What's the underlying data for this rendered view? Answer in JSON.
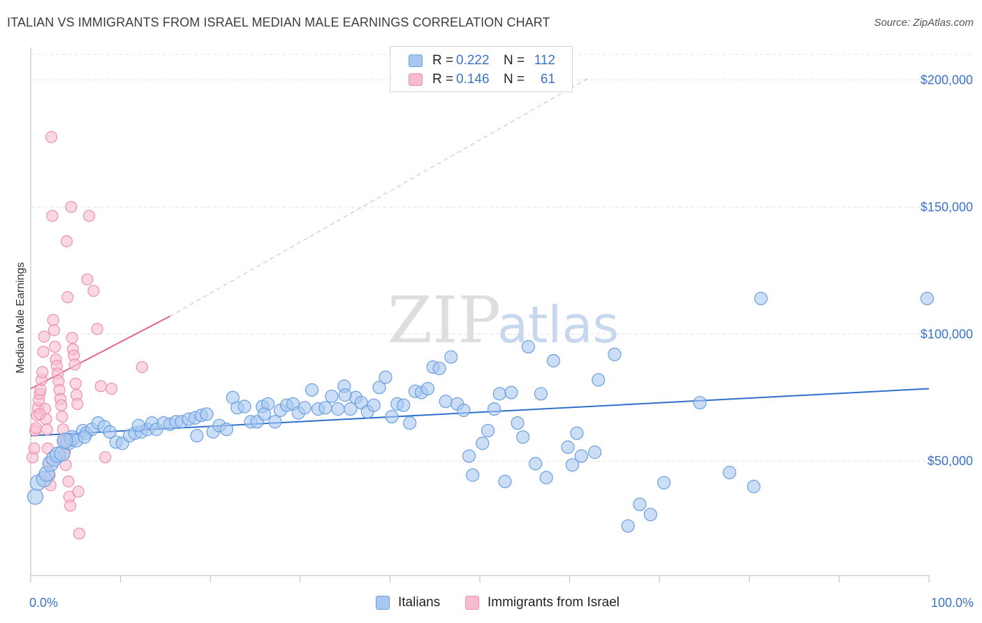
{
  "title": "ITALIAN VS IMMIGRANTS FROM ISRAEL MEDIAN MALE EARNINGS CORRELATION CHART",
  "source": "Source: ZipAtlas.com",
  "watermark": {
    "zip": "ZIP",
    "atlas": "atlas"
  },
  "legend": {
    "rows": [
      {
        "r_label": "R =",
        "r_value": "0.222",
        "n_label": "N =",
        "n_value": "112"
      },
      {
        "r_label": "R =",
        "r_value": "0.146",
        "n_label": "N =",
        "n_value": "61"
      }
    ]
  },
  "bottom_legend": [
    "Italians",
    "Immigrants from Israel"
  ],
  "colors": {
    "italians_fill": "#a9c8f0",
    "italians_stroke": "#6a9fe0",
    "italians_line": "#2f6fcc",
    "israel_fill": "#f7bcd0",
    "israel_stroke": "#ee8fb0",
    "israel_line": "#e06890",
    "tick_text": "#3a72c8",
    "grid": "#e2e2e2"
  },
  "chart_data": {
    "type": "scatter",
    "title": "ITALIAN VS IMMIGRANTS FROM ISRAEL MEDIAN MALE EARNINGS CORRELATION CHART",
    "xlabel": "",
    "ylabel": "Median Male Earnings",
    "xlim": [
      0,
      100
    ],
    "ylim": [
      5000,
      210000
    ],
    "x_tick_labels": [
      "0.0%",
      "100.0%"
    ],
    "y_ticks": [
      50000,
      100000,
      150000,
      200000
    ],
    "y_tick_labels": [
      "$50,000",
      "$100,000",
      "$150,000",
      "$200,000"
    ],
    "grid": true,
    "legend_position": "top-center",
    "series": [
      {
        "name": "Italians",
        "trend": {
          "x": [
            0,
            100
          ],
          "y": [
            60000,
            78500
          ]
        },
        "points": [
          [
            0.5,
            36000
          ],
          [
            0.8,
            41500
          ],
          [
            1.5,
            43000
          ],
          [
            1.8,
            45000
          ],
          [
            2.2,
            49000
          ],
          [
            2.6,
            51000
          ],
          [
            3.0,
            52500
          ],
          [
            3.5,
            53000
          ],
          [
            4.2,
            57500
          ],
          [
            4.6,
            59000
          ],
          [
            5.1,
            58000
          ],
          [
            5.8,
            62000
          ],
          [
            6.2,
            61000
          ],
          [
            6.8,
            62500
          ],
          [
            7.5,
            65000
          ],
          [
            8.2,
            63500
          ],
          [
            8.8,
            61500
          ],
          [
            9.5,
            57500
          ],
          [
            10.2,
            57000
          ],
          [
            11.0,
            60000
          ],
          [
            11.6,
            61000
          ],
          [
            12.3,
            61500
          ],
          [
            13.0,
            62500
          ],
          [
            13.5,
            65000
          ],
          [
            14.0,
            62500
          ],
          [
            14.8,
            65000
          ],
          [
            15.5,
            64500
          ],
          [
            16.2,
            65500
          ],
          [
            16.8,
            65500
          ],
          [
            17.6,
            66500
          ],
          [
            18.3,
            67000
          ],
          [
            19.0,
            68000
          ],
          [
            19.6,
            68500
          ],
          [
            20.3,
            61500
          ],
          [
            21.0,
            64000
          ],
          [
            21.8,
            62500
          ],
          [
            22.5,
            75000
          ],
          [
            23.0,
            71000
          ],
          [
            23.8,
            71500
          ],
          [
            24.5,
            65500
          ],
          [
            25.2,
            65500
          ],
          [
            25.8,
            71500
          ],
          [
            26.4,
            72500
          ],
          [
            27.2,
            65500
          ],
          [
            27.8,
            70000
          ],
          [
            28.5,
            72000
          ],
          [
            29.2,
            72500
          ],
          [
            29.8,
            69000
          ],
          [
            30.5,
            71000
          ],
          [
            31.3,
            78000
          ],
          [
            32.0,
            70500
          ],
          [
            32.8,
            71000
          ],
          [
            33.5,
            75500
          ],
          [
            34.2,
            70500
          ],
          [
            34.9,
            79500
          ],
          [
            35.6,
            70500
          ],
          [
            36.2,
            75000
          ],
          [
            36.8,
            73000
          ],
          [
            37.5,
            69500
          ],
          [
            38.2,
            72000
          ],
          [
            38.8,
            79000
          ],
          [
            39.5,
            83000
          ],
          [
            40.2,
            67500
          ],
          [
            40.8,
            72500
          ],
          [
            41.5,
            72000
          ],
          [
            42.2,
            65000
          ],
          [
            42.8,
            77500
          ],
          [
            43.5,
            77000
          ],
          [
            44.2,
            78500
          ],
          [
            44.8,
            87000
          ],
          [
            45.5,
            86500
          ],
          [
            46.2,
            73500
          ],
          [
            46.8,
            91000
          ],
          [
            47.5,
            72500
          ],
          [
            48.2,
            70000
          ],
          [
            48.8,
            52000
          ],
          [
            49.2,
            44500
          ],
          [
            50.3,
            57000
          ],
          [
            50.9,
            62000
          ],
          [
            51.6,
            70500
          ],
          [
            52.2,
            76500
          ],
          [
            52.8,
            42000
          ],
          [
            53.5,
            77000
          ],
          [
            54.2,
            65000
          ],
          [
            54.8,
            59500
          ],
          [
            55.4,
            95000
          ],
          [
            56.2,
            49000
          ],
          [
            56.8,
            76500
          ],
          [
            57.4,
            43500
          ],
          [
            58.2,
            89500
          ],
          [
            59.8,
            55500
          ],
          [
            60.3,
            48500
          ],
          [
            60.8,
            61000
          ],
          [
            61.3,
            52000
          ],
          [
            62.8,
            53500
          ],
          [
            63.2,
            82000
          ],
          [
            65.0,
            92000
          ],
          [
            66.5,
            24500
          ],
          [
            67.8,
            33000
          ],
          [
            69.0,
            29000
          ],
          [
            70.5,
            41500
          ],
          [
            74.5,
            73000
          ],
          [
            77.8,
            45500
          ],
          [
            80.5,
            40000
          ],
          [
            81.3,
            114000
          ],
          [
            99.8,
            114000
          ],
          [
            3.8,
            58000
          ],
          [
            6.0,
            59500
          ],
          [
            12.0,
            64000
          ],
          [
            18.5,
            60000
          ],
          [
            26.0,
            68500
          ],
          [
            35.0,
            76000
          ]
        ]
      },
      {
        "name": "Immigrants from Israel",
        "trend": {
          "x": [
            0,
            15.5
          ],
          "y": [
            78500,
            107000
          ]
        },
        "trend_extension": {
          "x": [
            15.5,
            62
          ],
          "y": [
            107000,
            200500
          ]
        },
        "points": [
          [
            0.2,
            51500
          ],
          [
            0.4,
            55000
          ],
          [
            0.5,
            62000
          ],
          [
            0.6,
            63000
          ],
          [
            0.7,
            68000
          ],
          [
            0.8,
            71000
          ],
          [
            0.9,
            74000
          ],
          [
            1.0,
            76500
          ],
          [
            1.1,
            78000
          ],
          [
            1.2,
            82000
          ],
          [
            1.3,
            85000
          ],
          [
            1.4,
            93000
          ],
          [
            1.5,
            99000
          ],
          [
            1.6,
            70500
          ],
          [
            1.7,
            66500
          ],
          [
            1.8,
            62500
          ],
          [
            1.9,
            55000
          ],
          [
            2.0,
            49500
          ],
          [
            2.1,
            44500
          ],
          [
            2.2,
            40500
          ],
          [
            2.3,
            177500
          ],
          [
            2.4,
            146500
          ],
          [
            2.5,
            105500
          ],
          [
            2.6,
            101500
          ],
          [
            2.7,
            95000
          ],
          [
            2.8,
            90000
          ],
          [
            2.9,
            87500
          ],
          [
            3.0,
            84500
          ],
          [
            3.1,
            81500
          ],
          [
            3.2,
            78000
          ],
          [
            3.3,
            74500
          ],
          [
            3.4,
            72000
          ],
          [
            3.5,
            67500
          ],
          [
            3.6,
            62500
          ],
          [
            3.7,
            58000
          ],
          [
            3.8,
            53500
          ],
          [
            3.9,
            48500
          ],
          [
            4.0,
            136500
          ],
          [
            4.1,
            114500
          ],
          [
            4.2,
            42000
          ],
          [
            4.3,
            36000
          ],
          [
            4.4,
            32500
          ],
          [
            4.5,
            150000
          ],
          [
            4.6,
            98500
          ],
          [
            4.7,
            94000
          ],
          [
            4.8,
            91500
          ],
          [
            4.9,
            88000
          ],
          [
            5.0,
            80500
          ],
          [
            5.1,
            76000
          ],
          [
            5.2,
            72500
          ],
          [
            5.3,
            38000
          ],
          [
            5.4,
            21500
          ],
          [
            6.3,
            121500
          ],
          [
            6.5,
            146500
          ],
          [
            7.0,
            117000
          ],
          [
            7.4,
            102000
          ],
          [
            7.8,
            79500
          ],
          [
            8.3,
            51500
          ],
          [
            9.0,
            78500
          ],
          [
            12.4,
            87000
          ],
          [
            1.0,
            68500
          ]
        ]
      }
    ]
  }
}
